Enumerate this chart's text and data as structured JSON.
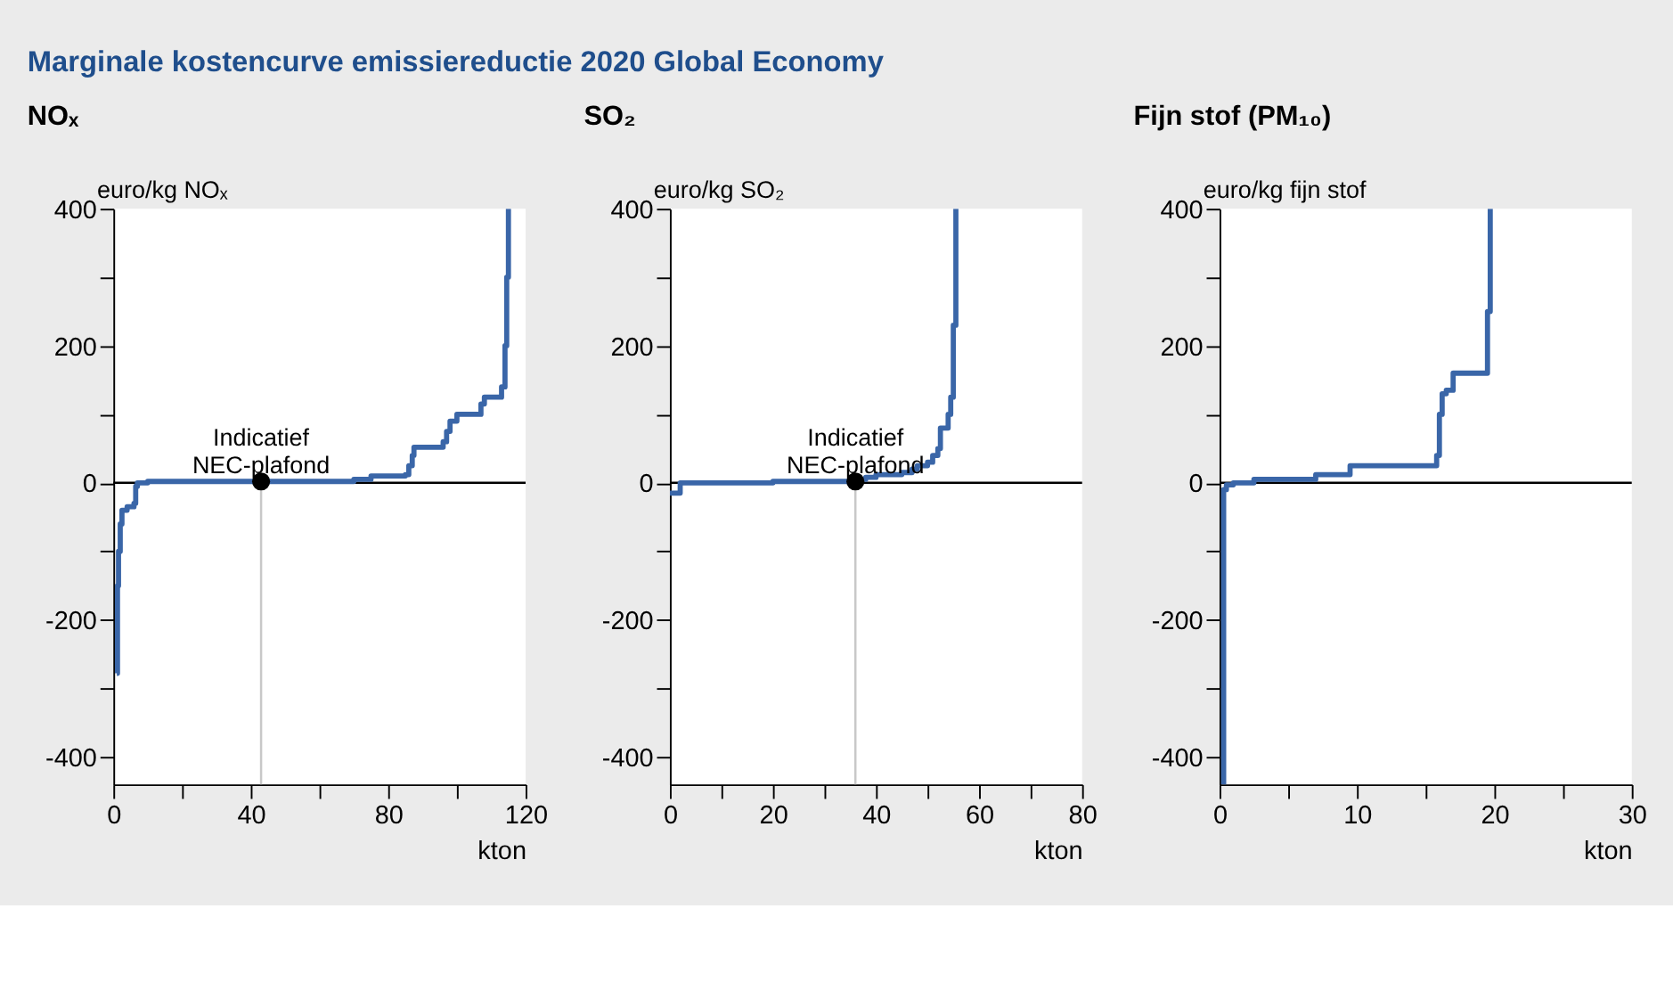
{
  "chart_data": [
    {
      "type": "step",
      "title": "NOₓ",
      "ylabel": "euro/kg NOₓ",
      "xlabel": "kton",
      "annotations": [
        "Marginale kostencurve emissiereductie 2020 Global Economy",
        {
          "text": "Indicatief\nNEC-plafond",
          "x": 43,
          "y": 2
        }
      ],
      "series": [
        {
          "color": "#3a66a8",
          "x": [
            1,
            1.2,
            1.5,
            2,
            2.5,
            4,
            6,
            6.5,
            7,
            10,
            70,
            75,
            85,
            86,
            87,
            87.5,
            96,
            97,
            98,
            100,
            107,
            108,
            113,
            114,
            114.5,
            115
          ],
          "values": [
            -278,
            -150,
            -100,
            -60,
            -40,
            -35,
            -30,
            -5,
            0,
            2,
            5,
            10,
            12,
            25,
            40,
            52,
            60,
            75,
            90,
            100,
            115,
            125,
            140,
            200,
            300,
            400
          ]
        },
        {
          "type": "scatter",
          "color": "#000000",
          "x": [
            43
          ],
          "values": [
            2
          ]
        }
      ],
      "ref_lines": [
        {
          "axis": "x",
          "value": 43,
          "color": "#c8c8c8"
        },
        {
          "axis": "y",
          "value": 0,
          "color": "#000000"
        }
      ],
      "xlim": [
        0,
        120
      ],
      "xticks": [
        0,
        {
          "value": 20,
          "label": null
        },
        40,
        {
          "value": 60,
          "label": null
        },
        80,
        {
          "value": 100,
          "label": null
        },
        120
      ],
      "ylim": [
        -440,
        400
      ],
      "yticks": [
        -400,
        {
          "value": -300,
          "label": null
        },
        -200,
        {
          "value": -100,
          "label": null
        },
        0,
        {
          "value": 100,
          "label": null
        },
        200,
        {
          "value": 300,
          "label": null
        },
        400
      ],
      "grid": false
    },
    {
      "type": "step",
      "title": "SO₂",
      "ylabel": "euro/kg SO₂",
      "xlabel": "kton",
      "annotations": [
        {
          "text": "Indicatief\nNEC-plafond",
          "x": 36,
          "y": 2
        }
      ],
      "series": [
        {
          "color": "#3a66a8",
          "x": [
            0,
            2,
            20,
            36,
            38,
            40,
            45,
            47,
            48,
            50,
            51,
            52,
            52.5,
            54,
            54.5,
            55,
            55.5
          ],
          "values": [
            -15,
            0,
            2,
            5,
            8,
            12,
            15,
            20,
            25,
            30,
            40,
            50,
            80,
            100,
            125,
            230,
            400
          ]
        },
        {
          "type": "scatter",
          "color": "#000000",
          "x": [
            36
          ],
          "values": [
            2
          ]
        }
      ],
      "ref_lines": [
        {
          "axis": "x",
          "value": 36,
          "color": "#c8c8c8"
        },
        {
          "axis": "y",
          "value": 0,
          "color": "#000000"
        }
      ],
      "xlim": [
        0,
        80
      ],
      "xticks": [
        0,
        {
          "value": 10,
          "label": null
        },
        20,
        {
          "value": 30,
          "label": null
        },
        40,
        {
          "value": 50,
          "label": null
        },
        60,
        {
          "value": 70,
          "label": null
        },
        80
      ],
      "ylim": [
        -440,
        400
      ],
      "yticks": [
        -400,
        {
          "value": -300,
          "label": null
        },
        -200,
        {
          "value": -100,
          "label": null
        },
        0,
        {
          "value": 100,
          "label": null
        },
        200,
        {
          "value": 300,
          "label": null
        },
        400
      ],
      "grid": false
    },
    {
      "type": "step",
      "title": "Fijn stof (PM₁₀)",
      "ylabel": "euro/kg fijn stof",
      "xlabel": "kton",
      "series": [
        {
          "color": "#3a66a8",
          "x": [
            0.2,
            0.3,
            0.5,
            1,
            2.5,
            7,
            9.5,
            15.8,
            16,
            16.2,
            16.5,
            17,
            19.5,
            19.7
          ],
          "values": [
            -440,
            -10,
            -3,
            0,
            5,
            12,
            25,
            40,
            100,
            130,
            135,
            160,
            250,
            400
          ]
        }
      ],
      "ref_lines": [
        {
          "axis": "y",
          "value": 0,
          "color": "#000000"
        }
      ],
      "xlim": [
        0,
        30
      ],
      "xticks": [
        0,
        {
          "value": 5,
          "label": null
        },
        10,
        {
          "value": 15,
          "label": null
        },
        20,
        {
          "value": 25,
          "label": null
        },
        30
      ],
      "ylim": [
        -440,
        400
      ],
      "yticks": [
        -400,
        {
          "value": -300,
          "label": null
        },
        -200,
        {
          "value": -100,
          "label": null
        },
        0,
        {
          "value": 100,
          "label": null
        },
        200,
        {
          "value": 300,
          "label": null
        },
        400
      ],
      "grid": false
    }
  ]
}
